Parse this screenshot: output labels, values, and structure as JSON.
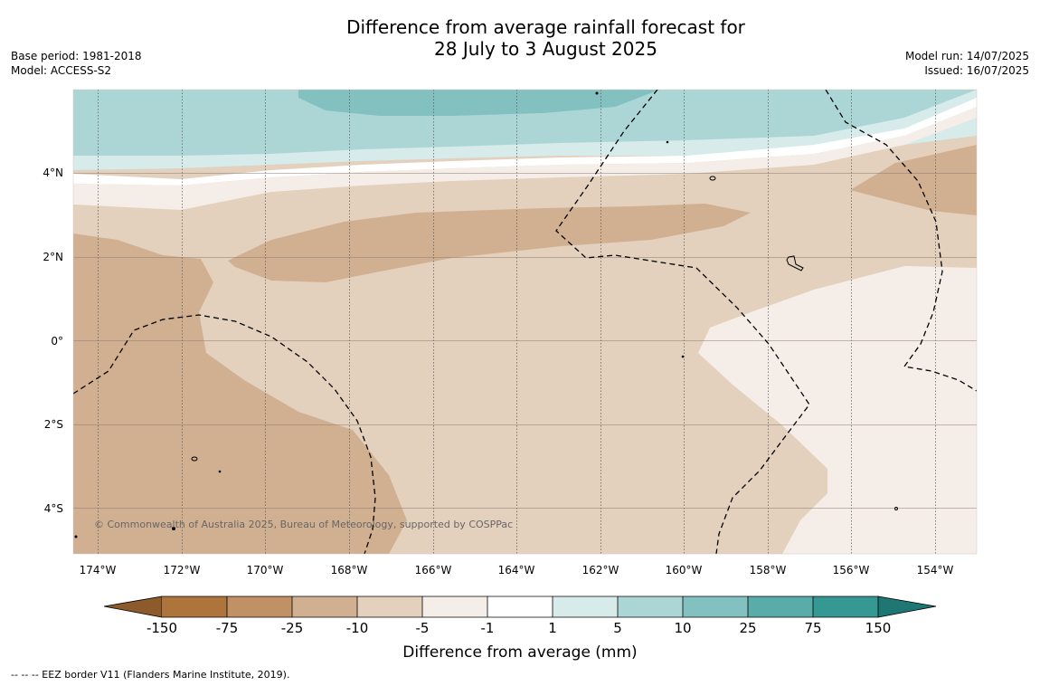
{
  "title_line1": "Difference from average rainfall forecast for",
  "title_line2": "28 July to 3 August 2025",
  "base_period": "Base period: 1981-2018",
  "model": "Model: ACCESS-S2",
  "model_run": "Model run: 14/07/2025",
  "issued": "Issued: 16/07/2025",
  "copyright": "© Commonwealth of Australia 2025, Bureau of Meteorology, supported by COSPPac",
  "footnote": "-- -- -- EEZ border V11 (Flanders Marine Institute, 2019).",
  "map": {
    "lon_ticks": [
      "174°W",
      "172°W",
      "170°W",
      "168°W",
      "166°W",
      "164°W",
      "162°W",
      "160°W",
      "158°W",
      "156°W",
      "154°W"
    ],
    "lat_ticks": [
      "4°N",
      "2°N",
      "0°",
      "2°S",
      "4°S"
    ]
  },
  "legend": {
    "label": "Difference from average (mm)",
    "ticks": [
      "-150",
      "-75",
      "-25",
      "-10",
      "-5",
      "-1",
      "1",
      "5",
      "10",
      "25",
      "75",
      "150"
    ],
    "colors": {
      "lt_-150": "#8c5a2b",
      "-150_-75": "#ad743c",
      "-75_-25": "#c19166",
      "-25_-10": "#d1b092",
      "-10_-5": "#e3d0bd",
      "-5_-1": "#f5ede7",
      "-1_1": "#ffffff",
      "1_5": "#d7ebea",
      "5_10": "#acd6d5",
      "10_25": "#82c1c0",
      "25_75": "#5aaca9",
      "75_150": "#359893",
      "gt_150": "#1f7773"
    }
  }
}
